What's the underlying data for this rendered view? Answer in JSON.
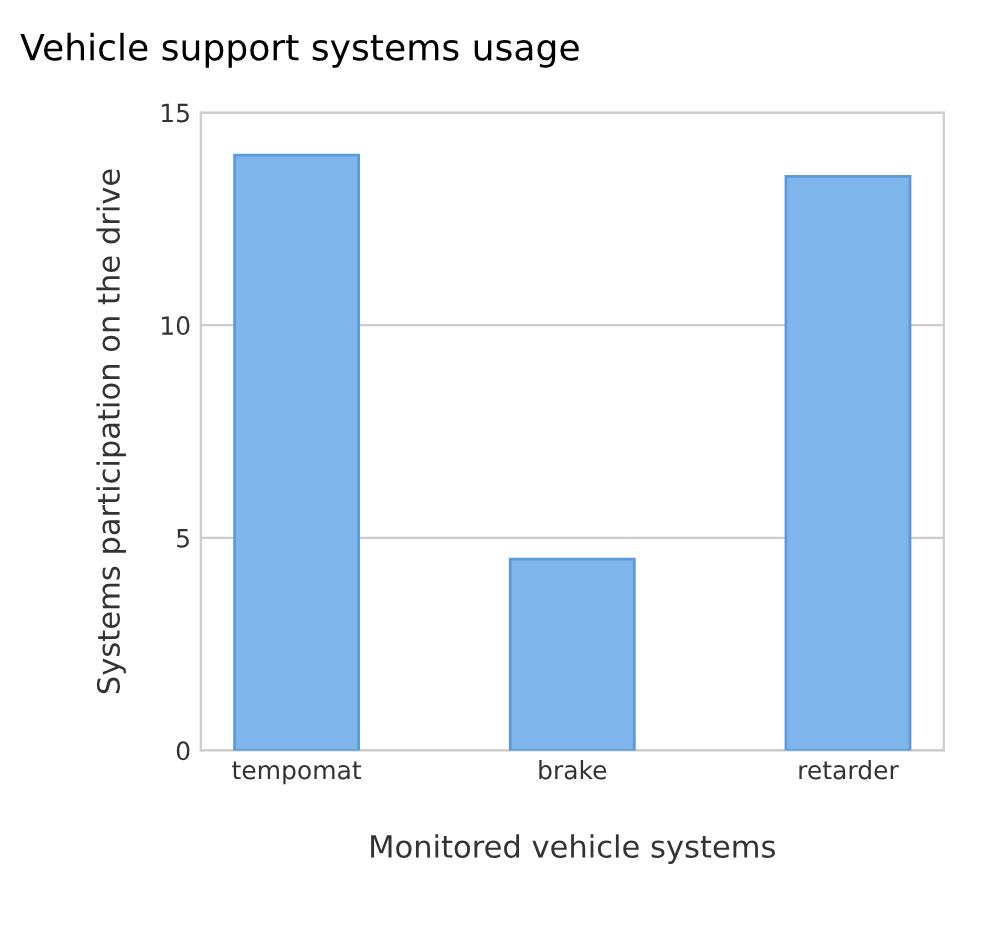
{
  "chart_data": {
    "type": "bar",
    "title": "Vehicle support systems usage",
    "xlabel": "Monitored vehicle systems",
    "ylabel": "Systems participation on the drive",
    "categories": [
      "tempomat",
      "brake",
      "retarder"
    ],
    "values": [
      14,
      4.5,
      13.5
    ],
    "color": "#7eb6ec",
    "ylim": [
      0,
      15
    ],
    "yticks": [
      0,
      5,
      10,
      15
    ],
    "grid": "y"
  }
}
